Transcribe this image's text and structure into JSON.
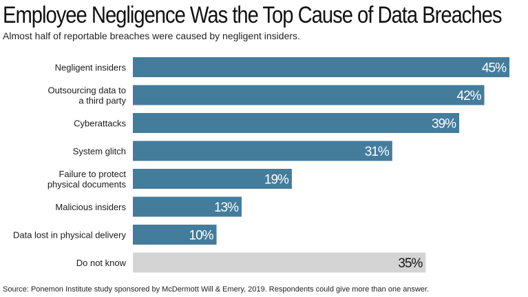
{
  "chart_data": {
    "type": "bar",
    "orientation": "horizontal",
    "title": "Employee Negligence Was the Top Cause of Data Breaches",
    "subtitle": "Almost half of reportable breaches were caused by negligent insiders.",
    "categories": [
      [
        "Negligent insiders"
      ],
      [
        "Outsourcing data to",
        "a third party"
      ],
      [
        "Cyberattacks"
      ],
      [
        "System glitch"
      ],
      [
        "Failure to protect",
        "physical documents"
      ],
      [
        "Malicious insiders"
      ],
      [
        "Data lost in physical delivery"
      ],
      [
        "Do not know"
      ]
    ],
    "values": [
      45,
      42,
      39,
      31,
      19,
      13,
      10,
      35
    ],
    "value_labels": [
      "45%",
      "42%",
      "39%",
      "31%",
      "19%",
      "13%",
      "10%",
      "35%"
    ],
    "unit": "%",
    "xlim": [
      0,
      45
    ],
    "grid": false,
    "legend": "none",
    "colors": {
      "bar": "#447c9c",
      "bar_other": "#d4d4d4",
      "label_on_bar": "#ffffff",
      "label_on_other": "#111111"
    },
    "source": "Source: Ponemon Institute study sponsored by McDermott Will & Emery, 2019. Respondents could give more than one answer."
  }
}
